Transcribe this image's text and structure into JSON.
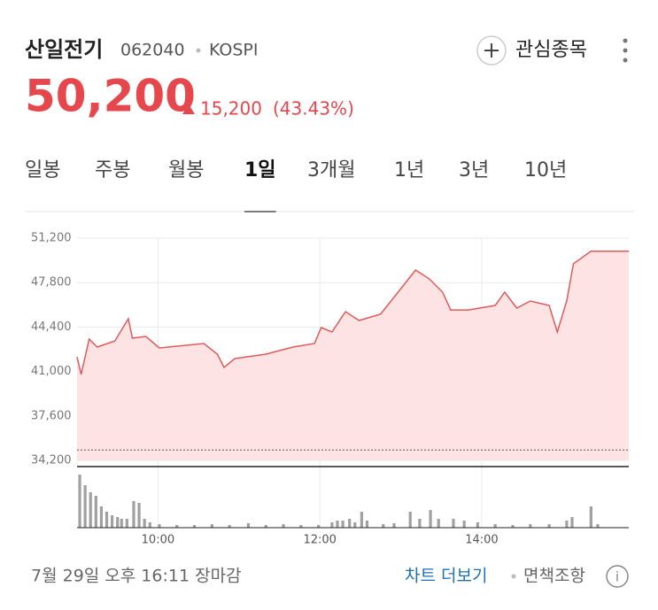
{
  "header": {
    "name": "산일전기",
    "code": "062040",
    "market": "KOSPI",
    "price": "50,200",
    "change": "15,200",
    "change_pct": "(43.43%)",
    "watch": "관심종목"
  },
  "tabs": [
    "일봉",
    "주봉",
    "월봉",
    "1일",
    "3개월",
    "1년",
    "3년",
    "10년"
  ],
  "active_tab": "1일",
  "chart_data": [
    {
      "type": "line",
      "color": "#e05a5a",
      "fill": "#fde3e3",
      "x": [
        540,
        543,
        549,
        555,
        568,
        578,
        581,
        591,
        601,
        634,
        644,
        649,
        657,
        680,
        700,
        716,
        721,
        729,
        739,
        749,
        765,
        778,
        791,
        801,
        811,
        817,
        830,
        850,
        857,
        866,
        876,
        890,
        896,
        903,
        908,
        921,
        949
      ],
      "values": [
        42120,
        40770,
        43480,
        42870,
        43340,
        45040,
        43550,
        43680,
        42800,
        43140,
        42330,
        41310,
        41990,
        42330,
        42870,
        43140,
        44360,
        44020,
        45580,
        44900,
        45380,
        47070,
        48760,
        48090,
        47070,
        45710,
        45710,
        46050,
        47070,
        45850,
        46390,
        46050,
        44020,
        46390,
        49240,
        50200,
        50200
      ],
      "xlim": [
        540,
        949
      ],
      "ylim": [
        34200,
        51200
      ],
      "yticks": [
        {
          "value": 34200,
          "label": "34,200"
        },
        {
          "value": 37600,
          "label": "37,600"
        },
        {
          "value": 41000,
          "label": "41,000"
        },
        {
          "value": 44400,
          "label": "44,400"
        },
        {
          "value": 47800,
          "label": "47,800"
        },
        {
          "value": 51200,
          "label": "51,200"
        }
      ],
      "xticks": [
        {
          "value": 600,
          "label": "10:00"
        },
        {
          "value": 720,
          "label": "12:00"
        },
        {
          "value": 840,
          "label": "14:00"
        }
      ],
      "reference_line": 35000,
      "grid": true
    },
    {
      "type": "bar",
      "color": "#a0a0a0",
      "x": [
        542,
        546,
        550,
        554,
        558,
        562,
        566,
        570,
        573,
        577,
        582,
        586,
        590,
        594,
        601,
        614,
        627,
        640,
        653,
        667,
        680,
        693,
        706,
        719,
        729,
        733,
        737,
        742,
        746,
        751,
        755,
        767,
        775,
        787,
        794,
        802,
        808,
        819,
        827,
        837,
        850,
        863,
        876,
        890,
        903,
        907,
        921,
        926
      ],
      "values": [
        60,
        48,
        40,
        36,
        24,
        18,
        14,
        12,
        10,
        10,
        30,
        28,
        10,
        6,
        4,
        3,
        3,
        4,
        3,
        5,
        3,
        4,
        3,
        3,
        6,
        8,
        8,
        10,
        6,
        18,
        8,
        4,
        5,
        18,
        10,
        20,
        10,
        10,
        8,
        6,
        4,
        3,
        4,
        4,
        8,
        12,
        24,
        4
      ],
      "xlim": [
        540,
        949
      ],
      "ylim": [
        0,
        60
      ]
    }
  ],
  "footer": {
    "timestamp": "7월 29일 오후 16:11 장마감",
    "more": "차트 더보기",
    "disclaimer": "면책조항"
  }
}
